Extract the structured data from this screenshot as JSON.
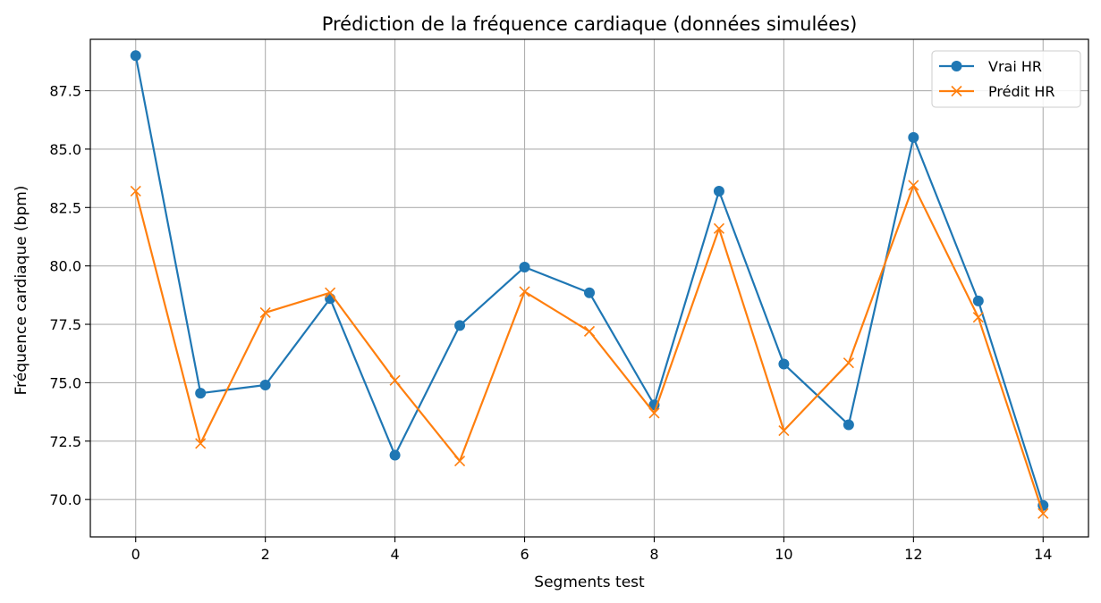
{
  "chart_data": {
    "type": "line",
    "title": "Prédiction de la fréquence cardiaque (données simulées)",
    "xlabel": "Segments test",
    "ylabel": "Fréquence cardiaque (bpm)",
    "xlim": [
      -0.7,
      14.7
    ],
    "ylim": [
      68.4,
      89.7
    ],
    "x": [
      0,
      1,
      2,
      3,
      4,
      5,
      6,
      7,
      8,
      9,
      10,
      11,
      12,
      13,
      14
    ],
    "x_ticks": [
      0,
      2,
      4,
      6,
      8,
      10,
      12,
      14
    ],
    "x_tick_labels": [
      "0",
      "2",
      "4",
      "6",
      "8",
      "10",
      "12",
      "14"
    ],
    "y_ticks": [
      70.0,
      72.5,
      75.0,
      77.5,
      80.0,
      82.5,
      85.0,
      87.5
    ],
    "y_tick_labels": [
      "70.0",
      "72.5",
      "75.0",
      "77.5",
      "80.0",
      "82.5",
      "85.0",
      "87.5"
    ],
    "grid": true,
    "legend_position": "top-right",
    "series": [
      {
        "name": "Vrai HR",
        "color": "#1f77b4",
        "marker": "circle",
        "values": [
          89.0,
          74.55,
          74.9,
          78.6,
          71.9,
          77.45,
          79.95,
          78.85,
          74.05,
          83.2,
          75.8,
          73.2,
          85.5,
          78.5,
          69.75
        ]
      },
      {
        "name": "Prédit HR",
        "color": "#ff7f0e",
        "marker": "x",
        "values": [
          83.2,
          72.4,
          78.0,
          78.85,
          75.1,
          71.65,
          78.9,
          77.2,
          73.7,
          81.6,
          72.95,
          75.85,
          83.45,
          77.8,
          69.4
        ]
      }
    ]
  }
}
